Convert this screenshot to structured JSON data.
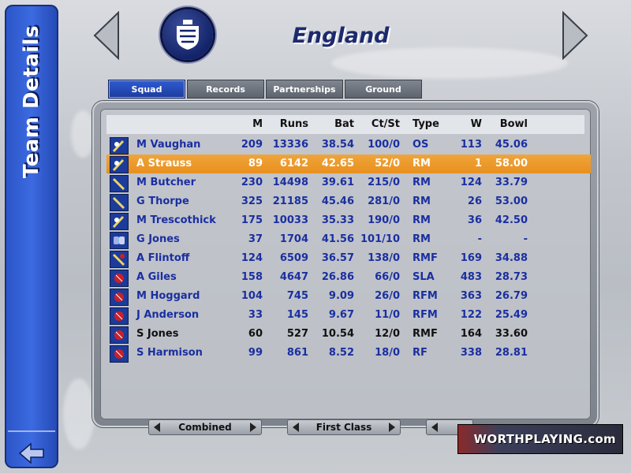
{
  "sidebar": {
    "title": "Team Details"
  },
  "header": {
    "team_name": "England"
  },
  "tabs": [
    {
      "label": "Squad",
      "active": true
    },
    {
      "label": "Records",
      "active": false
    },
    {
      "label": "Partnerships",
      "active": false
    },
    {
      "label": "Ground",
      "active": false
    }
  ],
  "table": {
    "columns": [
      "M",
      "Runs",
      "Bat",
      "Ct/St",
      "Type",
      "W",
      "Bowl"
    ],
    "rows": [
      {
        "icon": "bat-ball-icon",
        "name": "M Vaughan",
        "m": "209",
        "runs": "13336",
        "bat": "38.54",
        "ct": "100/0",
        "type": "OS",
        "w": "113",
        "bowl": "45.06"
      },
      {
        "icon": "bat-ball-icon",
        "name": "A Strauss",
        "m": "89",
        "runs": "6142",
        "bat": "42.65",
        "ct": "52/0",
        "type": "RM",
        "w": "1",
        "bowl": "58.00",
        "selected": true
      },
      {
        "icon": "bat-icon",
        "name": "M Butcher",
        "m": "230",
        "runs": "14498",
        "bat": "39.61",
        "ct": "215/0",
        "type": "RM",
        "w": "124",
        "bowl": "33.79"
      },
      {
        "icon": "bat-icon",
        "name": "G Thorpe",
        "m": "325",
        "runs": "21185",
        "bat": "45.46",
        "ct": "281/0",
        "type": "RM",
        "w": "26",
        "bowl": "53.00"
      },
      {
        "icon": "bat-ball-icon",
        "name": "M Trescothick",
        "m": "175",
        "runs": "10033",
        "bat": "35.33",
        "ct": "190/0",
        "type": "RM",
        "w": "36",
        "bowl": "42.50"
      },
      {
        "icon": "keeper-gloves-icon",
        "name": "G Jones",
        "m": "37",
        "runs": "1704",
        "bat": "41.56",
        "ct": "101/10",
        "type": "RM",
        "w": "-",
        "bowl": "-"
      },
      {
        "icon": "allrounder-icon",
        "name": "A Flintoff",
        "m": "124",
        "runs": "6509",
        "bat": "36.57",
        "ct": "138/0",
        "type": "RMF",
        "w": "169",
        "bowl": "34.88"
      },
      {
        "icon": "ball-icon",
        "name": "A Giles",
        "m": "158",
        "runs": "4647",
        "bat": "26.86",
        "ct": "66/0",
        "type": "SLA",
        "w": "483",
        "bowl": "28.73"
      },
      {
        "icon": "ball-icon",
        "name": "M Hoggard",
        "m": "104",
        "runs": "745",
        "bat": "9.09",
        "ct": "26/0",
        "type": "RFM",
        "w": "363",
        "bowl": "26.79"
      },
      {
        "icon": "ball-icon",
        "name": "J Anderson",
        "m": "33",
        "runs": "145",
        "bat": "9.67",
        "ct": "11/0",
        "type": "RFM",
        "w": "122",
        "bowl": "25.49"
      },
      {
        "icon": "ball-icon",
        "name": "S Jones",
        "m": "60",
        "runs": "527",
        "bat": "10.54",
        "ct": "12/0",
        "type": "RMF",
        "w": "164",
        "bowl": "33.60",
        "dark": true
      },
      {
        "icon": "ball-icon",
        "name": "S Harmison",
        "m": "99",
        "runs": "861",
        "bat": "8.52",
        "ct": "18/0",
        "type": "RF",
        "w": "338",
        "bowl": "28.81"
      }
    ]
  },
  "bottom": {
    "selector1": "Combined",
    "selector2": "First Class"
  },
  "watermark": "WORTHPLAYING.com",
  "colors": {
    "sidebar": "#2a55c8",
    "selected_row": "#e8901e",
    "player_text": "#1a2fa0",
    "title": "#1c2a6e"
  }
}
